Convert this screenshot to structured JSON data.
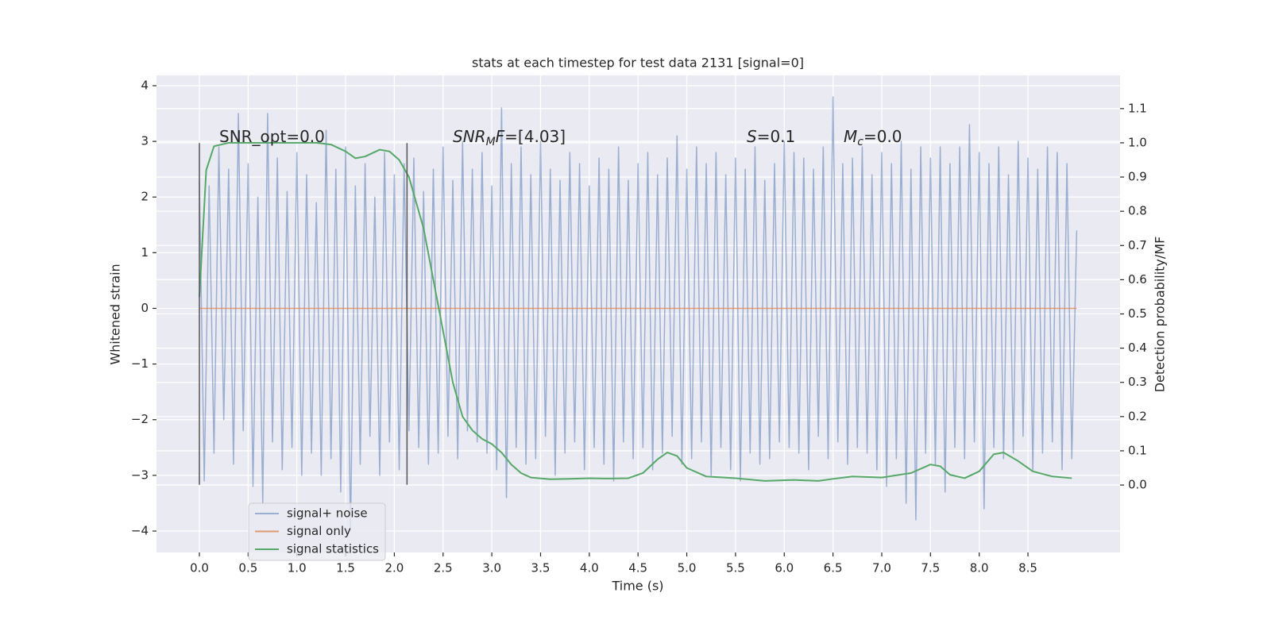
{
  "chart_data": {
    "type": "line",
    "title": "stats at each timestep for test data 2131 [signal=0]",
    "x_label": "Time (s)",
    "y_label": "Whitened strain",
    "y2_label": "Detection probability/MF",
    "annotations": [
      [
        "SNR_opt=0.0"
      ],
      [
        "SNR",
        "M",
        "F",
        "=[4.03]"
      ],
      [
        "S",
        "=0.1"
      ],
      [
        "M",
        "c",
        "=0.0"
      ]
    ],
    "grid": true,
    "legend": "lower left",
    "xlim": [
      -0.44,
      9.445
    ],
    "ylim": [
      -4.385,
      4.185
    ],
    "y2lim": [
      -0.197,
      1.197
    ],
    "xticks": [
      {
        "value": 0,
        "label": "0.0"
      },
      0.5,
      {
        "value": 1,
        "label": "1.0"
      },
      1.5,
      {
        "value": 2,
        "label": "2.0"
      },
      2.5,
      {
        "value": 3,
        "label": "3.0"
      },
      3.5,
      {
        "value": 4,
        "label": "4.0"
      },
      4.5,
      {
        "value": 5,
        "label": "5.0"
      },
      5.5,
      {
        "value": 6,
        "label": "6.0"
      },
      6.5,
      {
        "value": 7,
        "label": "7.0"
      },
      7.5,
      {
        "value": 8,
        "label": "8.0"
      },
      8.5
    ],
    "yticks": [
      {
        "value": -4,
        "label": "−4"
      },
      {
        "value": -3,
        "label": "−3"
      },
      {
        "value": -2,
        "label": "−2"
      },
      {
        "value": -1,
        "label": "−1"
      },
      0,
      1,
      2,
      3,
      4
    ],
    "y2ticks": [
      {
        "value": 0,
        "label": "0.0"
      },
      0.1,
      0.2,
      0.3,
      0.4,
      0.5,
      0.6,
      0.7,
      0.8,
      0.9,
      {
        "value": 1,
        "label": "1.0"
      },
      1.1
    ],
    "vlines": [
      0,
      2.13
    ],
    "vline_range": [
      -3.17,
      2.97
    ],
    "series": [
      {
        "name": "signal+ noise",
        "color": "#4c72b0",
        "opacity": 0.5,
        "x": [
          0,
          0.05,
          0.1,
          0.15,
          0.2,
          0.25,
          0.3,
          0.35,
          0.4,
          0.45,
          0.5,
          0.55,
          0.6,
          0.65,
          0.7,
          0.75,
          0.8,
          0.85,
          0.9,
          0.95,
          1,
          1.05,
          1.1,
          1.15,
          1.2,
          1.25,
          1.3,
          1.35,
          1.4,
          1.45,
          1.5,
          1.55,
          1.6,
          1.65,
          1.7,
          1.75,
          1.8,
          1.85,
          1.9,
          1.95,
          2,
          2.05,
          2.1,
          2.15,
          2.2,
          2.25,
          2.3,
          2.35,
          2.4,
          2.45,
          2.5,
          2.55,
          2.6,
          2.65,
          2.7,
          2.75,
          2.8,
          2.85,
          2.9,
          2.95,
          3,
          3.05,
          3.1,
          3.15,
          3.2,
          3.25,
          3.3,
          3.35,
          3.4,
          3.45,
          3.5,
          3.55,
          3.6,
          3.65,
          3.7,
          3.75,
          3.8,
          3.85,
          3.9,
          3.95,
          4,
          4.05,
          4.1,
          4.15,
          4.2,
          4.25,
          4.3,
          4.35,
          4.4,
          4.45,
          4.5,
          4.55,
          4.6,
          4.65,
          4.7,
          4.75,
          4.8,
          4.85,
          4.9,
          4.95,
          5,
          5.05,
          5.1,
          5.15,
          5.2,
          5.25,
          5.3,
          5.35,
          5.4,
          5.45,
          5.5,
          5.55,
          5.6,
          5.65,
          5.7,
          5.75,
          5.8,
          5.85,
          5.9,
          5.95,
          6,
          6.05,
          6.1,
          6.15,
          6.2,
          6.25,
          6.3,
          6.35,
          6.4,
          6.45,
          6.5,
          6.55,
          6.6,
          6.65,
          6.7,
          6.75,
          6.8,
          6.85,
          6.9,
          6.95,
          7,
          7.05,
          7.1,
          7.15,
          7.2,
          7.25,
          7.3,
          7.35,
          7.4,
          7.45,
          7.5,
          7.55,
          7.6,
          7.65,
          7.7,
          7.75,
          7.8,
          7.85,
          7.9,
          7.95,
          8,
          8.05,
          8.1,
          8.15,
          8.2,
          8.25,
          8.3,
          8.35,
          8.4,
          8.45,
          8.5,
          8.55,
          8.6,
          8.65,
          8.7,
          8.75,
          8.8,
          8.85,
          8.9,
          8.95,
          9
        ],
        "values": [
          2.3,
          -3.1,
          2.2,
          -2.6,
          2.9,
          -2.0,
          2.5,
          -2.8,
          3.5,
          -2.2,
          2.6,
          -3.2,
          2.0,
          -3.5,
          3.5,
          -2.4,
          2.7,
          -2.9,
          2.1,
          -2.5,
          2.8,
          -3.0,
          2.4,
          -2.6,
          1.9,
          -3.0,
          3.2,
          -2.7,
          2.5,
          -3.3,
          2.9,
          -4.0,
          2.2,
          -2.8,
          2.6,
          -2.3,
          2.0,
          -3.0,
          2.8,
          -2.4,
          2.4,
          -2.9,
          2.6,
          -2.2,
          2.7,
          -2.5,
          2.1,
          -2.8,
          2.5,
          -2.6,
          2.9,
          -2.3,
          2.3,
          -2.7,
          3.0,
          -2.2,
          2.5,
          -2.4,
          2.8,
          -2.6,
          2.2,
          -2.9,
          3.6,
          -3.4,
          2.6,
          -2.5,
          2.9,
          -2.8,
          2.4,
          -2.7,
          3.0,
          -2.3,
          2.5,
          -3.0,
          2.3,
          -2.6,
          2.8,
          -2.4,
          2.6,
          -2.9,
          2.2,
          -2.5,
          2.7,
          -2.8,
          2.5,
          -3.1,
          2.9,
          -2.4,
          2.3,
          -2.7,
          2.6,
          -2.5,
          2.8,
          -2.9,
          2.4,
          -2.6,
          2.7,
          -2.3,
          3.1,
          -2.8,
          2.5,
          -2.7,
          2.9,
          -2.4,
          2.6,
          -3.0,
          2.8,
          -2.5,
          2.4,
          -2.9,
          2.7,
          -3.1,
          2.5,
          -2.6,
          2.9,
          -2.8,
          2.3,
          -2.7,
          2.6,
          -2.4,
          3.0,
          -2.5,
          2.8,
          -2.6,
          2.7,
          -2.9,
          2.5,
          -2.3,
          2.9,
          -2.7,
          3.8,
          -2.4,
          2.6,
          -2.8,
          2.7,
          -2.5,
          2.9,
          -2.6,
          2.4,
          -2.9,
          2.8,
          -3.2,
          2.6,
          -2.7,
          3.0,
          -3.5,
          2.5,
          -3.8,
          2.9,
          -2.6,
          2.7,
          -2.8,
          2.9,
          -3.3,
          2.6,
          -2.5,
          2.9,
          -2.7,
          3.3,
          -2.4,
          2.8,
          -3.6,
          2.6,
          -2.5,
          2.9,
          -2.7,
          2.4,
          -2.6,
          3.0,
          -2.3,
          2.7,
          -2.9,
          2.5,
          -2.6,
          2.9,
          -2.4,
          2.8,
          -2.9,
          2.6,
          -2.7,
          1.4
        ]
      },
      {
        "name": "signal only",
        "color": "#dd8452",
        "opacity": 0.8,
        "x": [
          0,
          9
        ],
        "values": [
          0,
          0
        ]
      },
      {
        "name": "signal statistics",
        "color": "#55a868",
        "opacity": 1,
        "axis": "y2",
        "x": [
          0,
          0.07,
          0.15,
          0.3,
          0.6,
          0.9,
          1.2,
          1.35,
          1.5,
          1.6,
          1.7,
          1.85,
          1.95,
          2.05,
          2.15,
          2.3,
          2.4,
          2.5,
          2.6,
          2.7,
          2.8,
          2.9,
          3.0,
          3.1,
          3.2,
          3.3,
          3.4,
          3.6,
          3.8,
          4.0,
          4.2,
          4.4,
          4.55,
          4.7,
          4.8,
          4.9,
          5.0,
          5.2,
          5.5,
          5.8,
          6.1,
          6.35,
          6.5,
          6.7,
          7.0,
          7.3,
          7.5,
          7.6,
          7.7,
          7.85,
          8.0,
          8.15,
          8.25,
          8.4,
          8.55,
          8.75,
          8.95
        ],
        "values": [
          0.55,
          0.92,
          0.99,
          1.0,
          1.0,
          1.0,
          1.0,
          0.995,
          0.975,
          0.955,
          0.96,
          0.98,
          0.975,
          0.95,
          0.9,
          0.75,
          0.6,
          0.45,
          0.3,
          0.2,
          0.16,
          0.135,
          0.12,
          0.095,
          0.06,
          0.035,
          0.022,
          0.017,
          0.018,
          0.02,
          0.019,
          0.02,
          0.035,
          0.075,
          0.095,
          0.085,
          0.05,
          0.025,
          0.02,
          0.012,
          0.015,
          0.012,
          0.018,
          0.025,
          0.022,
          0.035,
          0.06,
          0.055,
          0.03,
          0.02,
          0.04,
          0.09,
          0.095,
          0.07,
          0.04,
          0.025,
          0.02
        ]
      }
    ]
  }
}
